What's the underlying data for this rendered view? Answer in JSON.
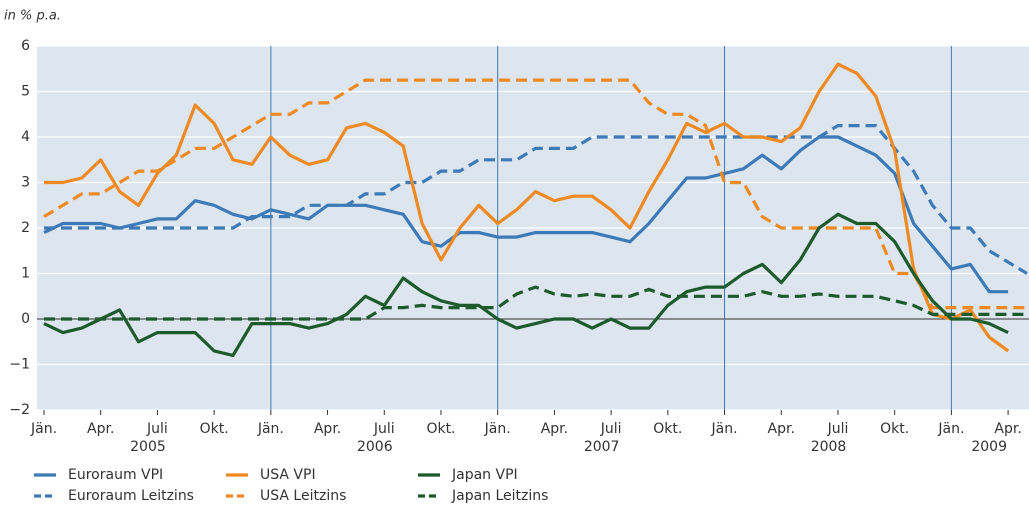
{
  "chart_data": {
    "type": "line",
    "y_label": "in % p.a.",
    "categories": [
      "Jän.",
      null,
      null,
      "Apr.",
      null,
      null,
      "Juli",
      null,
      null,
      "Okt.",
      null,
      null,
      "Jän.",
      null,
      null,
      "Apr.",
      null,
      null,
      "Juli",
      null,
      null,
      "Okt.",
      null,
      null,
      "Jän.",
      null,
      null,
      "Apr.",
      null,
      null,
      "Juli",
      null,
      null,
      "Okt.",
      null,
      null,
      "Jän.",
      null,
      null,
      "Apr.",
      null,
      null,
      "Juli",
      null,
      null,
      "Okt.",
      null,
      null,
      "Jän.",
      null,
      null,
      "Apr.",
      null
    ],
    "year_labels": [
      "2005",
      "2006",
      "2007",
      "2008",
      "2009"
    ],
    "ylim": [
      -2,
      6
    ],
    "yticks": [
      {
        "value": -2,
        "label": "−2"
      },
      {
        "value": -1,
        "label": "−1"
      },
      0,
      1,
      2,
      3,
      4,
      5,
      6
    ],
    "grid": true,
    "series": [
      {
        "name": "Euroraum VPI",
        "color": "#3d7ab8",
        "style": "solid",
        "values": [
          1.9,
          2.1,
          2.1,
          2.1,
          2.0,
          2.1,
          2.2,
          2.2,
          2.6,
          2.5,
          2.3,
          2.2,
          2.4,
          2.3,
          2.2,
          2.5,
          2.5,
          2.5,
          2.4,
          2.3,
          1.7,
          1.6,
          1.9,
          1.9,
          1.8,
          1.8,
          1.9,
          1.9,
          1.9,
          1.9,
          1.8,
          1.7,
          2.1,
          2.6,
          3.1,
          3.1,
          3.2,
          3.3,
          3.6,
          3.3,
          3.7,
          4.0,
          4.0,
          3.8,
          3.6,
          3.2,
          2.1,
          1.6,
          1.1,
          1.2,
          0.6,
          0.6,
          null
        ]
      },
      {
        "name": "Euroraum Leitzins",
        "color": "#3d7ab8",
        "style": "dashed",
        "values": [
          2.0,
          2.0,
          2.0,
          2.0,
          2.0,
          2.0,
          2.0,
          2.0,
          2.0,
          2.0,
          2.0,
          2.25,
          2.25,
          2.25,
          2.5,
          2.5,
          2.5,
          2.75,
          2.75,
          3.0,
          3.0,
          3.25,
          3.25,
          3.5,
          3.5,
          3.5,
          3.75,
          3.75,
          3.75,
          4.0,
          4.0,
          4.0,
          4.0,
          4.0,
          4.0,
          4.0,
          4.0,
          4.0,
          4.0,
          4.0,
          4.0,
          4.0,
          4.25,
          4.25,
          4.25,
          3.75,
          3.25,
          2.5,
          2.0,
          2.0,
          1.5,
          1.25,
          1.0
        ]
      },
      {
        "name": "USA VPI",
        "color": "#ef8a23",
        "style": "solid",
        "values": [
          3.0,
          3.0,
          3.1,
          3.5,
          2.8,
          2.5,
          3.2,
          3.6,
          4.7,
          4.3,
          3.5,
          3.4,
          4.0,
          3.6,
          3.4,
          3.5,
          4.2,
          4.3,
          4.1,
          3.8,
          2.1,
          1.3,
          2.0,
          2.5,
          2.1,
          2.4,
          2.8,
          2.6,
          2.7,
          2.7,
          2.4,
          2.0,
          2.8,
          3.5,
          4.3,
          4.1,
          4.3,
          4.0,
          4.0,
          3.9,
          4.2,
          5.0,
          5.6,
          5.4,
          4.9,
          3.7,
          1.1,
          0.1,
          0.0,
          0.2,
          -0.4,
          -0.7,
          null
        ]
      },
      {
        "name": "USA Leitzins",
        "color": "#ef8a23",
        "style": "dashed",
        "values": [
          2.25,
          2.5,
          2.75,
          2.75,
          3.0,
          3.25,
          3.25,
          3.5,
          3.75,
          3.75,
          4.0,
          4.25,
          4.5,
          4.5,
          4.75,
          4.75,
          5.0,
          5.25,
          5.25,
          5.25,
          5.25,
          5.25,
          5.25,
          5.25,
          5.25,
          5.25,
          5.25,
          5.25,
          5.25,
          5.25,
          5.25,
          5.25,
          4.75,
          4.5,
          4.5,
          4.25,
          3.0,
          3.0,
          2.25,
          2.0,
          2.0,
          2.0,
          2.0,
          2.0,
          2.0,
          1.0,
          1.0,
          0.25,
          0.25,
          0.25,
          0.25,
          0.25,
          0.25
        ]
      },
      {
        "name": "Japan VPI",
        "color": "#1d5a2c",
        "style": "solid",
        "values": [
          -0.1,
          -0.3,
          -0.2,
          0.0,
          0.2,
          -0.5,
          -0.3,
          -0.3,
          -0.3,
          -0.7,
          -0.8,
          -0.1,
          -0.1,
          -0.1,
          -0.2,
          -0.1,
          0.1,
          0.5,
          0.3,
          0.9,
          0.6,
          0.4,
          0.3,
          0.3,
          0.0,
          -0.2,
          -0.1,
          0.0,
          0.0,
          -0.2,
          0.0,
          -0.2,
          -0.2,
          0.3,
          0.6,
          0.7,
          0.7,
          1.0,
          1.2,
          0.8,
          1.3,
          2.0,
          2.3,
          2.1,
          2.1,
          1.7,
          1.0,
          0.4,
          0.0,
          0.0,
          -0.1,
          -0.3,
          null
        ]
      },
      {
        "name": "Japan Leitzins",
        "color": "#1d5a2c",
        "style": "dashed",
        "values": [
          0,
          0,
          0,
          0,
          0,
          0,
          0,
          0,
          0,
          0,
          0,
          0,
          0,
          0,
          0,
          0,
          0,
          0,
          0.25,
          0.25,
          0.3,
          0.25,
          0.25,
          0.25,
          0.25,
          0.55,
          0.7,
          0.55,
          0.5,
          0.55,
          0.5,
          0.5,
          0.65,
          0.5,
          0.5,
          0.5,
          0.5,
          0.5,
          0.6,
          0.5,
          0.5,
          0.55,
          0.5,
          0.5,
          0.5,
          0.4,
          0.3,
          0.1,
          0.1,
          0.1,
          0.1,
          0.1,
          0.1
        ]
      }
    ]
  }
}
